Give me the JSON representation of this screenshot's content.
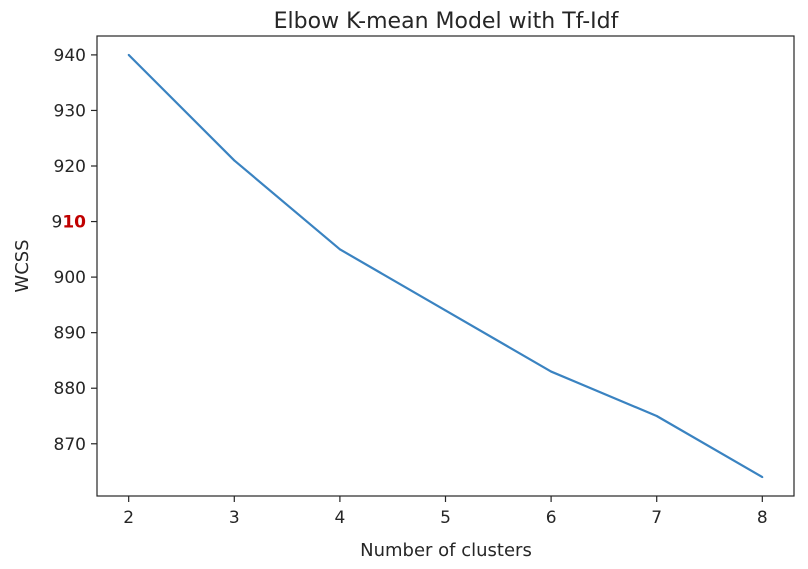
{
  "chart_data": {
    "type": "line",
    "title": "Elbow K-mean Model with Tf-Idf",
    "xlabel": "Number of clusters",
    "ylabel": "WCSS",
    "x": [
      2,
      3,
      4,
      5,
      6,
      7,
      8
    ],
    "series": [
      {
        "values": [
          940,
          921,
          905,
          894,
          883,
          875,
          864
        ],
        "color": "#3a83c1"
      }
    ],
    "xlim": [
      1.7,
      8.3
    ],
    "ylim": [
      860.6,
      943.4
    ],
    "xticks": [
      "2",
      "3",
      "4",
      "5",
      "6",
      "7",
      "8"
    ],
    "yticks": [
      "870",
      "880",
      "890",
      "900",
      "910",
      "920",
      "930",
      "940"
    ],
    "highlighted_tick": "910",
    "highlight_color": "#c00000",
    "grid": false,
    "legend": "none"
  }
}
